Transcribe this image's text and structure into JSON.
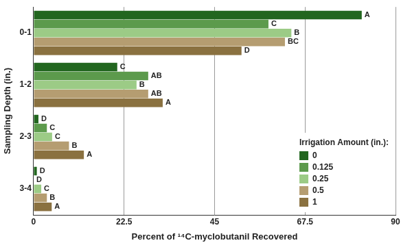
{
  "chart_data": {
    "type": "bar",
    "orientation": "horizontal",
    "x_label": "Percent of ¹⁴C-myclobutanil Recovered",
    "y_label": "Sampling Depth (in.)",
    "categories": [
      "0-1",
      "1-2",
      "2-3",
      "3-4"
    ],
    "xlim": [
      0,
      90
    ],
    "xticks": [
      0,
      22.5,
      45,
      67.5,
      90
    ],
    "grid": true,
    "legend": "lower right",
    "legend_title": "Irrigation Amount (in.):",
    "series": [
      {
        "name": "0",
        "color": "#22661f",
        "values": [
          81.6,
          20.8,
          1.2,
          0.8
        ],
        "letters": [
          "A",
          "C",
          "D",
          "D"
        ]
      },
      {
        "name": "0.125",
        "color": "#5c9a4c",
        "values": [
          58.4,
          28.5,
          3.3,
          0
        ],
        "letters": [
          "C",
          "AB",
          "C",
          "D"
        ]
      },
      {
        "name": "0.25",
        "color": "#9ccb86",
        "values": [
          64.1,
          25.6,
          4.6,
          1.9
        ],
        "letters": [
          "B",
          "B",
          "C",
          "C"
        ]
      },
      {
        "name": "0.5",
        "color": "#b59d71",
        "values": [
          62.5,
          28.5,
          8.8,
          3.3
        ],
        "letters": [
          "BC",
          "AB",
          "B",
          "B"
        ]
      },
      {
        "name": "1",
        "color": "#8a7140",
        "values": [
          51.7,
          32.1,
          12.5,
          4.5
        ],
        "letters": [
          "D",
          "A",
          "A",
          "A"
        ]
      }
    ]
  }
}
